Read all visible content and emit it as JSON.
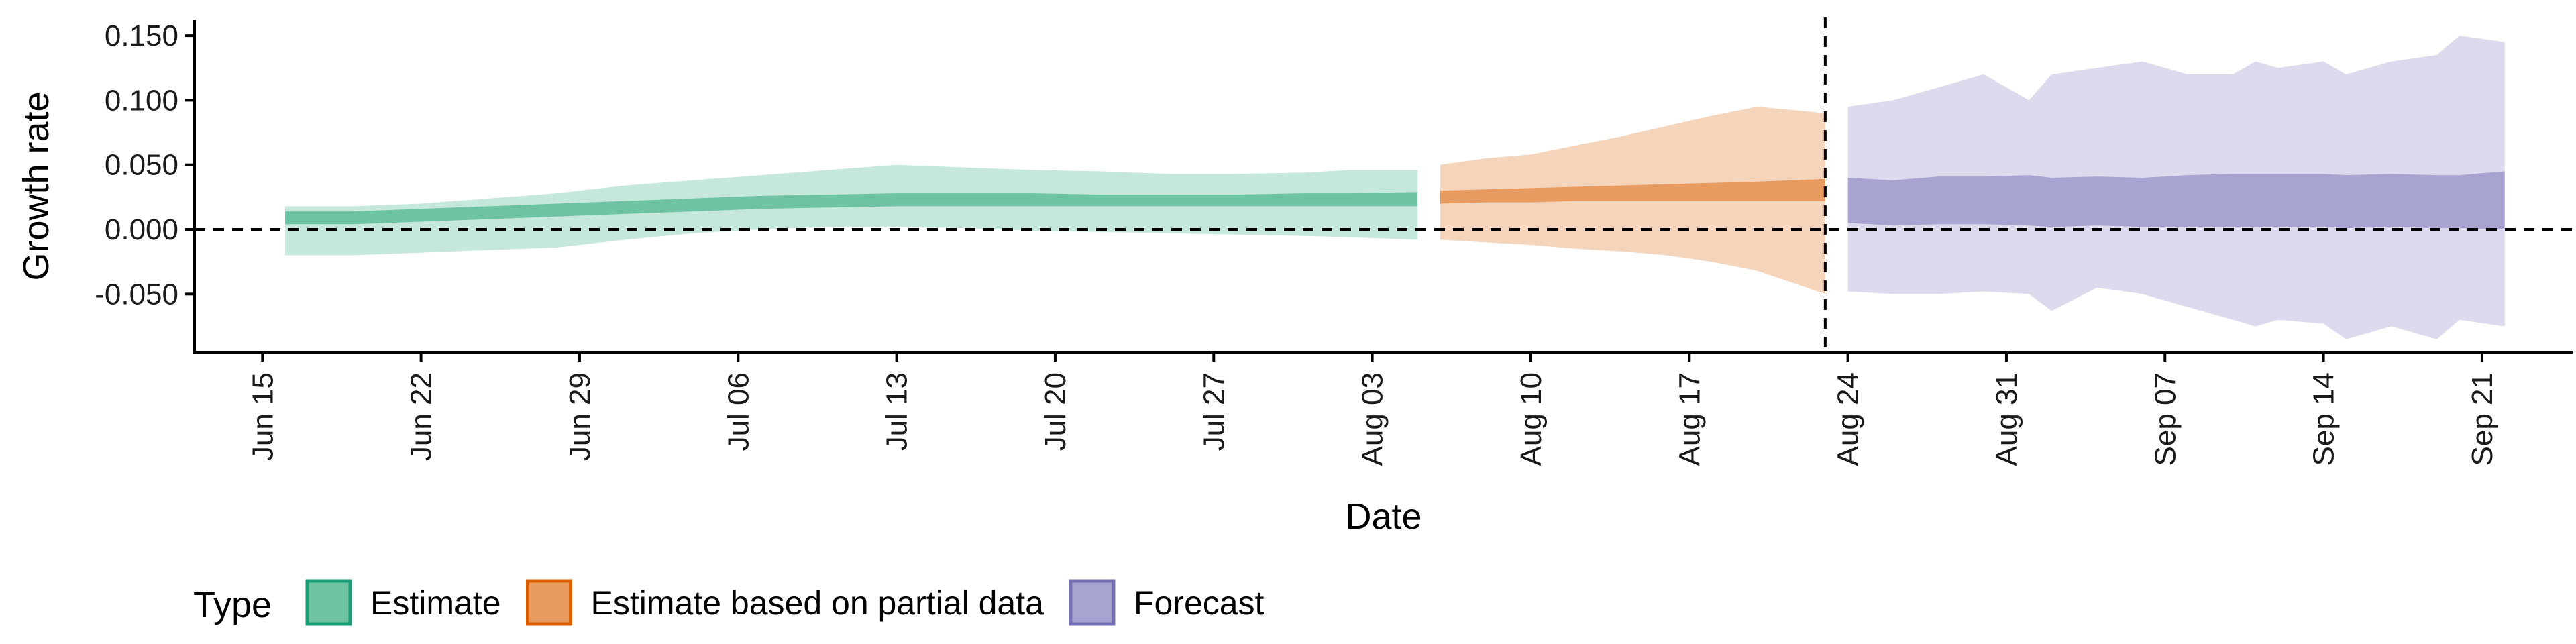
{
  "chart_data": {
    "type": "area",
    "title": "",
    "xlabel": "Date",
    "ylabel": "Growth rate",
    "xlim": [
      "2020-06-12",
      "2020-09-25"
    ],
    "ylim": [
      -0.095,
      0.162
    ],
    "y_ticks": [
      0.15,
      0.1,
      0.05,
      0.0,
      -0.05
    ],
    "y_tick_labels": [
      "0.150",
      "0.100",
      "0.050",
      "0.000",
      "-0.050"
    ],
    "x_ticks": [
      "2020-06-15",
      "2020-06-22",
      "2020-06-29",
      "2020-07-06",
      "2020-07-13",
      "2020-07-20",
      "2020-07-27",
      "2020-08-03",
      "2020-08-10",
      "2020-08-17",
      "2020-08-24",
      "2020-08-31",
      "2020-09-07",
      "2020-09-14",
      "2020-09-21"
    ],
    "x_tick_labels": [
      "Jun 15",
      "Jun 22",
      "Jun 29",
      "Jul 06",
      "Jul 13",
      "Jul 20",
      "Jul 27",
      "Aug 03",
      "Aug 10",
      "Aug 17",
      "Aug 24",
      "Aug 31",
      "Sep 07",
      "Sep 14",
      "Sep 21"
    ],
    "hline": 0.0,
    "vline": "2020-08-23",
    "grid": false,
    "legend": {
      "title": "Type",
      "position": "bottom-left",
      "entries": [
        {
          "label": "Estimate",
          "fill": "#6ec3a3",
          "border": "#1b9e77"
        },
        {
          "label": "Estimate based on partial data",
          "fill": "#e89b60",
          "border": "#d95f02"
        },
        {
          "label": "Forecast",
          "fill": "#a8a4d1",
          "border": "#7570b3"
        }
      ]
    },
    "series": [
      {
        "name": "Estimate",
        "inner_color": "#6ec3a3",
        "outer_color": "#c6e8da",
        "x": [
          "2020-06-16",
          "2020-06-19",
          "2020-06-22",
          "2020-06-25",
          "2020-06-28",
          "2020-07-01",
          "2020-07-04",
          "2020-07-07",
          "2020-07-10",
          "2020-07-13",
          "2020-07-16",
          "2020-07-19",
          "2020-07-22",
          "2020-07-25",
          "2020-07-28",
          "2020-07-31",
          "2020-08-02",
          "2020-08-05"
        ],
        "lower_outer": [
          -0.02,
          -0.02,
          -0.018,
          -0.016,
          -0.014,
          -0.008,
          -0.003,
          0.0,
          0.002,
          0.002,
          0.001,
          -0.001,
          -0.002,
          -0.003,
          -0.004,
          -0.005,
          -0.006,
          -0.008
        ],
        "lower_inner": [
          0.004,
          0.004,
          0.006,
          0.008,
          0.01,
          0.012,
          0.014,
          0.016,
          0.017,
          0.018,
          0.018,
          0.018,
          0.018,
          0.018,
          0.018,
          0.018,
          0.018,
          0.018
        ],
        "upper_inner": [
          0.014,
          0.014,
          0.016,
          0.018,
          0.02,
          0.022,
          0.024,
          0.026,
          0.027,
          0.028,
          0.028,
          0.028,
          0.027,
          0.027,
          0.027,
          0.028,
          0.028,
          0.029
        ],
        "upper_outer": [
          0.018,
          0.018,
          0.02,
          0.024,
          0.028,
          0.034,
          0.038,
          0.042,
          0.046,
          0.05,
          0.048,
          0.046,
          0.045,
          0.043,
          0.043,
          0.044,
          0.046,
          0.046
        ]
      },
      {
        "name": "Estimate based on partial data",
        "inner_color": "#e89b60",
        "outer_color": "#f5d4bc",
        "x": [
          "2020-08-06",
          "2020-08-08",
          "2020-08-10",
          "2020-08-12",
          "2020-08-14",
          "2020-08-16",
          "2020-08-18",
          "2020-08-20",
          "2020-08-23"
        ],
        "lower_outer": [
          -0.008,
          -0.01,
          -0.012,
          -0.015,
          -0.017,
          -0.02,
          -0.025,
          -0.032,
          -0.05
        ],
        "lower_inner": [
          0.02,
          0.021,
          0.021,
          0.022,
          0.022,
          0.022,
          0.022,
          0.022,
          0.022
        ],
        "upper_inner": [
          0.03,
          0.031,
          0.032,
          0.033,
          0.034,
          0.035,
          0.036,
          0.037,
          0.039
        ],
        "upper_outer": [
          0.05,
          0.055,
          0.058,
          0.065,
          0.072,
          0.08,
          0.088,
          0.095,
          0.09
        ]
      },
      {
        "name": "Forecast",
        "inner_color": "#a8a4d1",
        "outer_color": "#dcdaec",
        "x": [
          "2020-08-24",
          "2020-08-26",
          "2020-08-28",
          "2020-08-30",
          "2020-09-01",
          "2020-09-02",
          "2020-09-04",
          "2020-09-06",
          "2020-09-08",
          "2020-09-10",
          "2020-09-11",
          "2020-09-12",
          "2020-09-14",
          "2020-09-15",
          "2020-09-17",
          "2020-09-19",
          "2020-09-20",
          "2020-09-22"
        ],
        "lower_outer": [
          -0.048,
          -0.05,
          -0.05,
          -0.048,
          -0.05,
          -0.063,
          -0.045,
          -0.05,
          -0.06,
          -0.07,
          -0.075,
          -0.07,
          -0.073,
          -0.085,
          -0.075,
          -0.085,
          -0.07,
          -0.075
        ],
        "lower_inner": [
          0.005,
          0.003,
          0.004,
          0.004,
          0.003,
          0.002,
          0.003,
          0.002,
          0.002,
          0.002,
          0.002,
          0.002,
          0.002,
          0.001,
          0.002,
          0.001,
          0.001,
          0.0
        ],
        "upper_inner": [
          0.04,
          0.038,
          0.041,
          0.041,
          0.042,
          0.04,
          0.041,
          0.04,
          0.042,
          0.043,
          0.043,
          0.043,
          0.043,
          0.042,
          0.043,
          0.042,
          0.042,
          0.045
        ],
        "upper_outer": [
          0.095,
          0.1,
          0.11,
          0.12,
          0.1,
          0.12,
          0.125,
          0.13,
          0.12,
          0.12,
          0.13,
          0.125,
          0.13,
          0.12,
          0.13,
          0.135,
          0.15,
          0.145
        ]
      }
    ]
  }
}
